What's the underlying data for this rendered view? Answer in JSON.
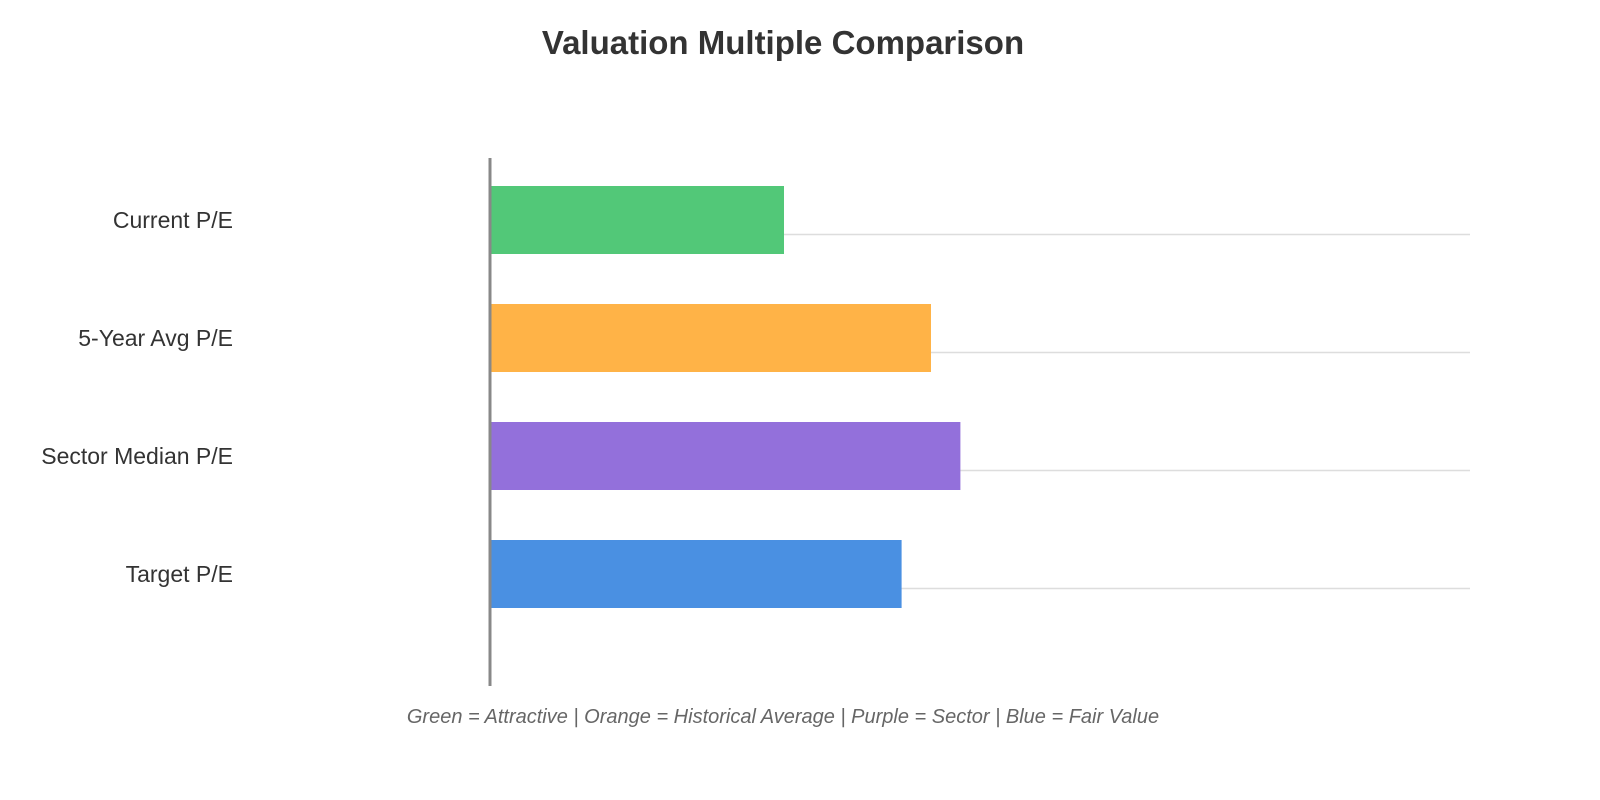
{
  "chart_data": {
    "type": "bar",
    "orientation": "horizontal",
    "title": "Valuation Multiple Comparison",
    "caption": "Green = Attractive | Orange = Historical Average | Purple = Sector | Blue = Fair Value",
    "categories": [
      "Current P/E",
      "5-Year Avg P/E",
      "Sector Median P/E",
      "Target P/E"
    ],
    "values": [
      15,
      22.5,
      24,
      21
    ],
    "colors": [
      "#52c878",
      "#ffb347",
      "#9370db",
      "#4a90e2"
    ],
    "xlim": [
      0,
      50
    ],
    "xlabel": "",
    "ylabel": "",
    "grid": true,
    "legend": "none"
  }
}
